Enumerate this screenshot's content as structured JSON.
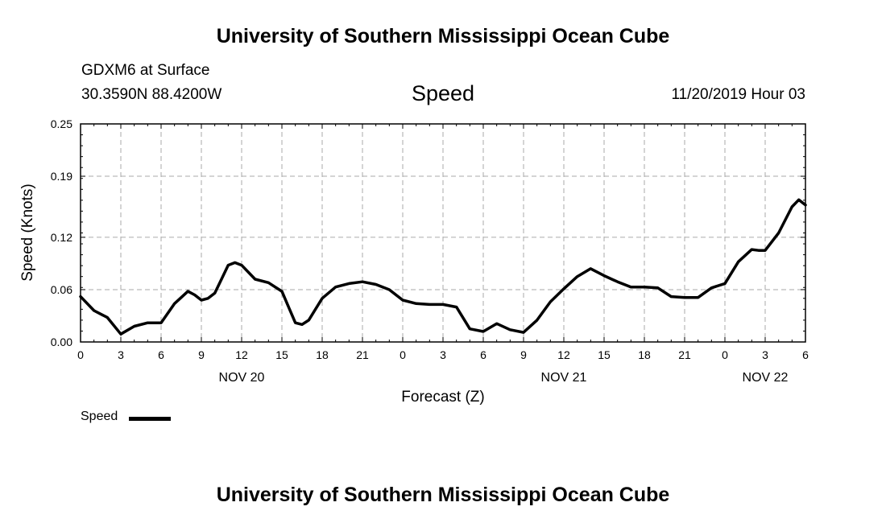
{
  "header": {
    "title": "University of Southern Mississippi Ocean Cube",
    "station": "GDXM6 at Surface",
    "coords": "30.3590N 88.4200W",
    "variable": "Speed",
    "datetime": "11/20/2019 Hour 03"
  },
  "footer": {
    "title": "University of Southern Mississippi Ocean Cube"
  },
  "chart_data": {
    "type": "line",
    "title": "Speed",
    "xlabel": "Forecast (Z)",
    "ylabel": "Speed (Knots)",
    "xlim": [
      0,
      54
    ],
    "ylim": [
      0.0,
      0.25
    ],
    "grid": true,
    "y_ticks": [
      0.0,
      0.06,
      0.12,
      0.19,
      0.25
    ],
    "y_tick_labels": [
      "0.00",
      "0.06",
      "0.12",
      "0.19",
      "0.25"
    ],
    "x_tick_hours": [
      0,
      3,
      6,
      9,
      12,
      15,
      18,
      21,
      24,
      27,
      30,
      33,
      36,
      39,
      42,
      45,
      48,
      51,
      54
    ],
    "x_tick_labels": [
      "0",
      "3",
      "6",
      "9",
      "12",
      "15",
      "18",
      "21",
      "0",
      "3",
      "6",
      "9",
      "12",
      "15",
      "18",
      "21",
      "0",
      "3",
      "6"
    ],
    "date_labels": [
      {
        "hour": 12,
        "label": "NOV 20"
      },
      {
        "hour": 36,
        "label": "NOV 21"
      },
      {
        "hour": 51,
        "label": "NOV 22"
      }
    ],
    "legend": {
      "position": "bottom-left",
      "label": "Speed"
    },
    "series": [
      {
        "name": "Speed",
        "x": [
          0,
          1,
          2,
          3,
          4,
          5,
          6,
          7,
          8,
          8.5,
          9,
          9.5,
          10,
          10.5,
          11,
          11.5,
          12,
          13,
          14,
          15,
          15.5,
          16,
          16.5,
          17,
          18,
          19,
          20,
          21,
          22,
          23,
          24,
          25,
          26,
          27,
          28,
          29,
          30,
          31,
          32,
          33,
          34,
          35,
          36,
          37,
          38,
          39,
          40,
          40.5,
          41,
          42,
          43,
          44,
          45,
          46,
          47,
          48,
          49,
          50,
          50.5,
          51,
          52,
          53,
          53.5,
          54
        ],
        "values": [
          0.052,
          0.036,
          0.028,
          0.009,
          0.018,
          0.022,
          0.022,
          0.044,
          0.058,
          0.054,
          0.048,
          0.05,
          0.056,
          0.072,
          0.088,
          0.091,
          0.088,
          0.072,
          0.068,
          0.058,
          0.04,
          0.022,
          0.02,
          0.025,
          0.05,
          0.063,
          0.067,
          0.069,
          0.066,
          0.06,
          0.048,
          0.044,
          0.043,
          0.043,
          0.04,
          0.015,
          0.012,
          0.021,
          0.014,
          0.011,
          0.025,
          0.046,
          0.061,
          0.075,
          0.084,
          0.076,
          0.069,
          0.066,
          0.063,
          0.063,
          0.062,
          0.052,
          0.051,
          0.051,
          0.062,
          0.067,
          0.092,
          0.106,
          0.105,
          0.105,
          0.125,
          0.155,
          0.163,
          0.157
        ]
      }
    ]
  }
}
